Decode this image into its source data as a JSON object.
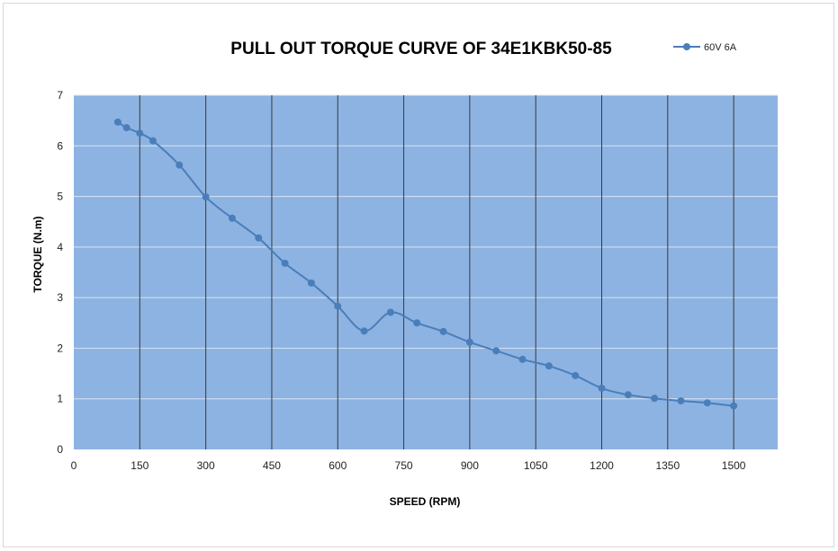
{
  "chart_data": {
    "type": "line",
    "title": "PULL OUT TORQUE CURVE OF 34E1KBK50-85",
    "xlabel": "SPEED (RPM)",
    "ylabel": "TORQUE (N.m)",
    "xlim": [
      0,
      1600
    ],
    "ylim": [
      0,
      7
    ],
    "xticks": [
      0,
      150,
      300,
      450,
      600,
      750,
      900,
      1050,
      1200,
      1350,
      1500
    ],
    "yticks": [
      0,
      1,
      2,
      3,
      4,
      5,
      6,
      7
    ],
    "grid": "vertical and horizontal",
    "legend_position": "top-right",
    "plot_background": "#8db3e2",
    "series": [
      {
        "name": "60V  6A",
        "color": "#4a7ebb",
        "x": [
          100,
          120,
          150,
          180,
          240,
          300,
          360,
          420,
          480,
          540,
          600,
          660,
          720,
          780,
          840,
          900,
          960,
          1020,
          1080,
          1140,
          1200,
          1260,
          1320,
          1380,
          1440,
          1500
        ],
        "y": [
          6.47,
          6.36,
          6.25,
          6.1,
          5.62,
          4.99,
          4.57,
          4.18,
          3.68,
          3.29,
          2.83,
          2.34,
          2.71,
          2.5,
          2.33,
          2.12,
          1.95,
          1.78,
          1.65,
          1.46,
          1.21,
          1.08,
          1.01,
          0.96,
          0.92,
          0.86
        ]
      }
    ]
  }
}
